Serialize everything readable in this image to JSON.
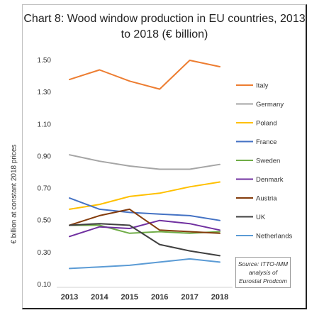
{
  "chart_data": {
    "type": "line",
    "title": "Chart 8: Wood window production in EU countries, 2013 to 2018 (€ billion)",
    "ylabel": "€ billion at constant 2018 prices",
    "xlabel": "",
    "x": [
      "2013",
      "2014",
      "2015",
      "2016",
      "2017",
      "2018"
    ],
    "ylim": [
      0.1,
      1.6
    ],
    "yticks": [
      "0.10",
      "0.30",
      "0.50",
      "0.70",
      "0.90",
      "1.10",
      "1.30",
      "1.50"
    ],
    "ytick_values": [
      0.1,
      0.3,
      0.5,
      0.7,
      0.9,
      1.1,
      1.3,
      1.5
    ],
    "grid": false,
    "legend_position": "right",
    "series": [
      {
        "name": "Italy",
        "color": "#ED7D31",
        "values": [
          1.38,
          1.44,
          1.37,
          1.32,
          1.5,
          1.46
        ]
      },
      {
        "name": "Germany",
        "color": "#A5A5A5",
        "values": [
          0.91,
          0.87,
          0.84,
          0.82,
          0.82,
          0.85
        ]
      },
      {
        "name": "Poland",
        "color": "#FFC000",
        "values": [
          0.57,
          0.6,
          0.65,
          0.67,
          0.71,
          0.74
        ]
      },
      {
        "name": "France",
        "color": "#4472C4",
        "values": [
          0.64,
          0.57,
          0.55,
          0.54,
          0.53,
          0.5
        ]
      },
      {
        "name": "Sweden",
        "color": "#70AD47",
        "values": [
          0.47,
          0.47,
          0.42,
          0.43,
          0.42,
          0.43
        ]
      },
      {
        "name": "Denmark",
        "color": "#7030A0",
        "values": [
          0.4,
          0.46,
          0.45,
          0.5,
          0.48,
          0.44
        ]
      },
      {
        "name": "Austria",
        "color": "#843C0C",
        "values": [
          0.47,
          0.53,
          0.57,
          0.44,
          0.43,
          0.42
        ]
      },
      {
        "name": "UK",
        "color": "#404040",
        "values": [
          0.47,
          0.48,
          0.47,
          0.35,
          0.31,
          0.28
        ]
      },
      {
        "name": "Netherlands",
        "color": "#5B9BD5",
        "values": [
          0.2,
          0.21,
          0.22,
          0.24,
          0.26,
          0.24
        ]
      }
    ],
    "source": "Source: ITTO-IMM analysis of Eurostat Prodcom"
  }
}
